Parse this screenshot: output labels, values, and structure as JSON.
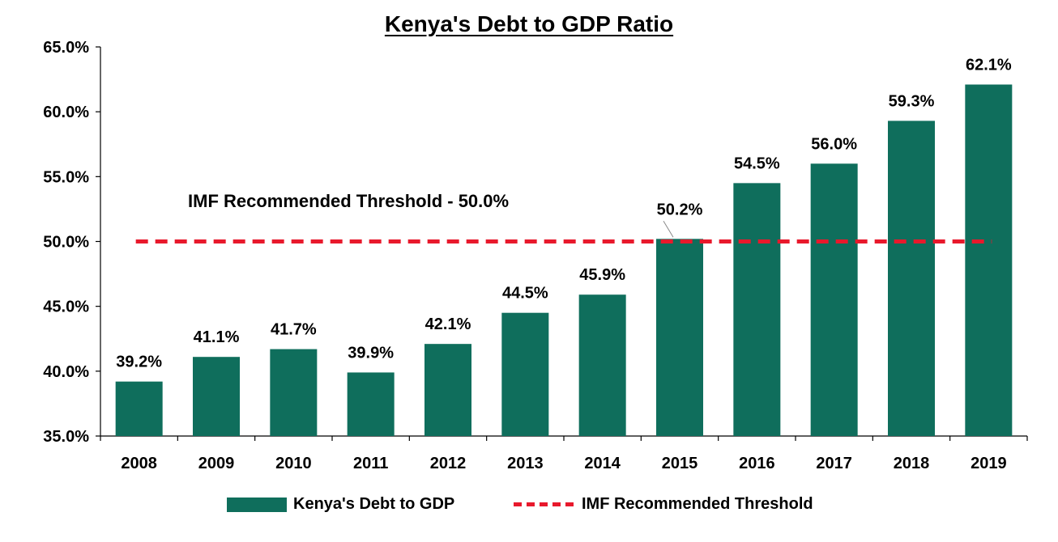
{
  "chart_data": {
    "type": "bar",
    "title": "Kenya's Debt to GDP Ratio",
    "categories": [
      "2008",
      "2009",
      "2010",
      "2011",
      "2012",
      "2013",
      "2014",
      "2015",
      "2016",
      "2017",
      "2018",
      "2019"
    ],
    "series": [
      {
        "name": "Kenya's Debt to GDP",
        "values": [
          39.2,
          41.1,
          41.7,
          39.9,
          42.1,
          44.5,
          45.9,
          50.2,
          54.5,
          56.0,
          59.3,
          62.1
        ],
        "color": "#0f6e5c"
      }
    ],
    "data_labels": [
      "39.2%",
      "41.1%",
      "41.7%",
      "39.9%",
      "42.1%",
      "44.5%",
      "45.9%",
      "50.2%",
      "54.5%",
      "56.0%",
      "59.3%",
      "62.1%"
    ],
    "threshold": {
      "name": "IMF Recommended Threshold",
      "value": 50.0,
      "color": "#e8192c",
      "style": "dashed"
    },
    "annotation": "IMF Recommended Threshold - 50.0%",
    "ylim": [
      35.0,
      65.0
    ],
    "yticks": [
      35.0,
      40.0,
      45.0,
      50.0,
      55.0,
      60.0,
      65.0
    ],
    "ytick_labels": [
      "35.0%",
      "40.0%",
      "45.0%",
      "50.0%",
      "55.0%",
      "60.0%",
      "65.0%"
    ],
    "xlabel": "",
    "ylabel": "",
    "grid": false,
    "legend_position": "bottom"
  }
}
